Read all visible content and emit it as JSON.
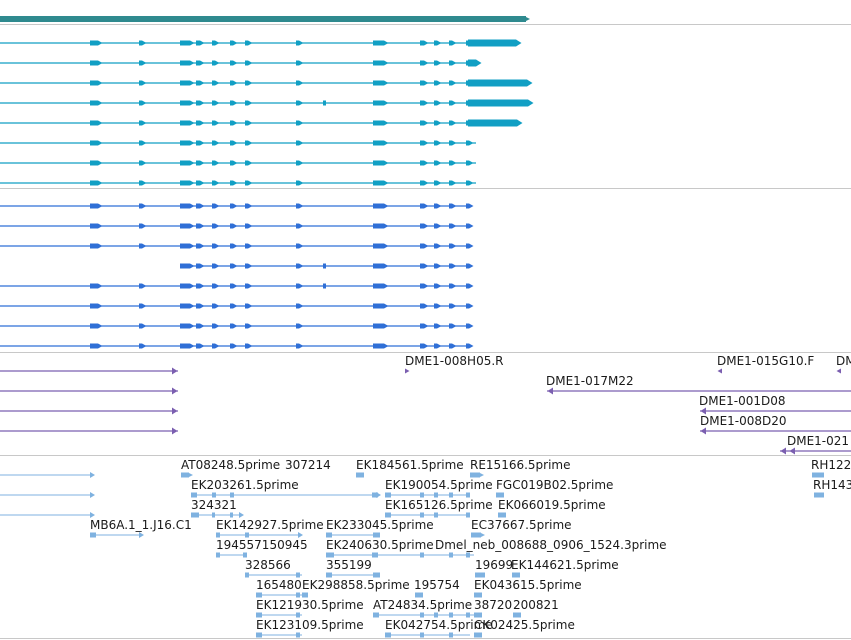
{
  "colors": {
    "genes": "#2f8a8f",
    "transcripts_teal": "#119fc4",
    "transcripts_blue": "#2f6fd6",
    "clones": "#7b5fb0",
    "est": "#7fb2e0",
    "divider": "#c8c8c8"
  },
  "tracks": {
    "clones": {
      "labels": [
        "DME1-008H05.R",
        "DME1-015G10.F",
        "DM",
        "DME1-017M22",
        "DME1-001D08",
        "DME1-008D20",
        "DME1-021"
      ]
    },
    "est": {
      "labels": [
        "AT08248.5prime",
        "307214",
        "EK184561.5prime",
        "RE15166.5prime",
        "RH122",
        "EK203261.5prime",
        "EK190054.5prime",
        "FGC019B02.5prime",
        "RH143",
        "324321",
        "EK165126.5prime",
        "EK066019.5prime",
        "MB6A.1_1.J16.C1",
        "EK142927.5prime",
        "EK233045.5prime",
        "EC37667.5prime",
        "194557150945",
        "EK240630.5prime",
        "Dmel_neb_008688_0906_1524.3prime",
        "328566",
        "355199",
        "19699",
        "EK144621.5prime",
        "165480",
        "EK298858.5prime",
        "195754",
        "EK043615.5prime",
        "EK121930.5prime",
        "AT24834.5prime",
        "38720",
        "200821",
        "EK123109.5prime",
        "EK042754.5prime",
        "CK02425.5prime"
      ]
    }
  }
}
